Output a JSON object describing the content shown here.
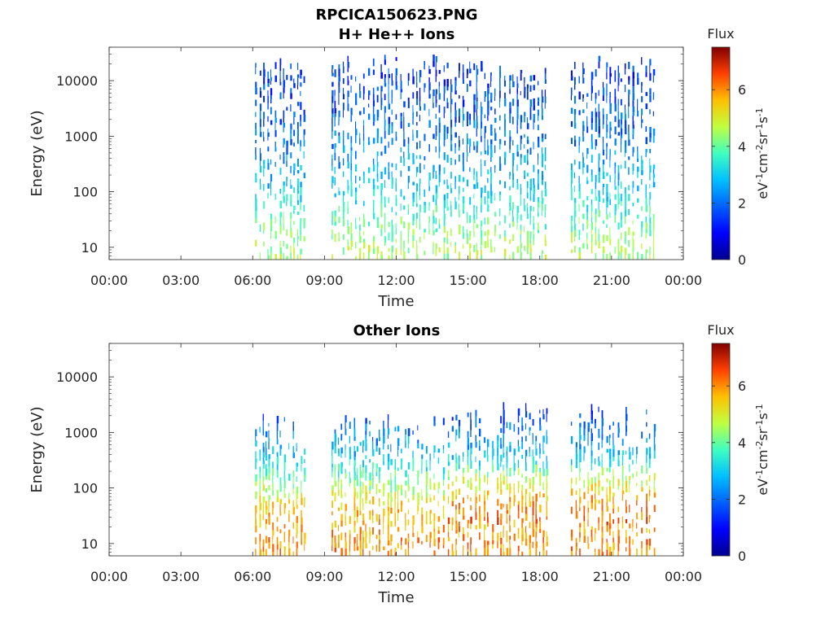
{
  "figure": {
    "title_line1": "RPCICA150623.PNG",
    "title_line2": "H+ He++ Ions"
  },
  "colorscale": [
    "#00008F",
    "#0000FF",
    "#0080FF",
    "#00FFFF",
    "#80FF80",
    "#FFFF00",
    "#FF8000",
    "#FF0000",
    "#800000"
  ],
  "chart_data": [
    {
      "type": "heatmap",
      "title": "H+ He++ Ions",
      "xlabel": "Time",
      "ylabel": "Energy (eV)",
      "x_ticks": [
        "00:00",
        "03:00",
        "06:00",
        "09:00",
        "12:00",
        "15:00",
        "18:00",
        "21:00",
        "00:00"
      ],
      "xlim_hours": [
        0,
        24
      ],
      "y_ticks": [
        10,
        100,
        1000,
        10000
      ],
      "y_tick_labels": [
        "10",
        "100",
        "1000",
        "10000"
      ],
      "ylim": [
        6,
        40000
      ],
      "yscale": "log",
      "colorbar": {
        "label": "Flux",
        "unit_label": "eV-1cm-2sr-1s-1",
        "ticks": [
          0,
          2,
          4,
          6
        ],
        "range": [
          0,
          7.5
        ]
      },
      "data_segments_hours": [
        [
          6.1,
          8.2
        ],
        [
          9.3,
          18.3
        ],
        [
          19.3,
          22.8
        ]
      ],
      "dominant_flux_by_energy": [
        {
          "energy_eV": 10,
          "flux": 4.5
        },
        {
          "energy_eV": 100,
          "flux": 3.0
        },
        {
          "energy_eV": 1000,
          "flux": 2.0
        },
        {
          "energy_eV": 10000,
          "flux": 1.5
        }
      ]
    },
    {
      "type": "heatmap",
      "title": "Other Ions",
      "xlabel": "Time",
      "ylabel": "Energy (eV)",
      "x_ticks": [
        "00:00",
        "03:00",
        "06:00",
        "09:00",
        "12:00",
        "15:00",
        "18:00",
        "21:00",
        "00:00"
      ],
      "xlim_hours": [
        0,
        24
      ],
      "y_ticks": [
        10,
        100,
        1000,
        10000
      ],
      "y_tick_labels": [
        "10",
        "100",
        "1000",
        "10000"
      ],
      "ylim": [
        6,
        40000
      ],
      "yscale": "log",
      "colorbar": {
        "label": "Flux",
        "unit_label": "eV-1cm-2sr-1s-1",
        "ticks": [
          0,
          2,
          4,
          6
        ],
        "range": [
          0,
          7.5
        ]
      },
      "data_segments_hours": [
        [
          6.1,
          8.2
        ],
        [
          9.3,
          18.3
        ],
        [
          19.3,
          22.8
        ]
      ],
      "dominant_flux_by_energy": [
        {
          "energy_eV": 10,
          "flux": 6.0
        },
        {
          "energy_eV": 40,
          "flux": 5.5
        },
        {
          "energy_eV": 300,
          "flux": 3.0
        },
        {
          "energy_eV": 2000,
          "flux": 1.5
        }
      ]
    }
  ]
}
